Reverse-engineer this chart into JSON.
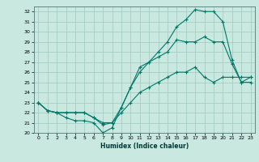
{
  "title": "",
  "xlabel": "Humidex (Indice chaleur)",
  "xlim": [
    -0.5,
    23.5
  ],
  "ylim": [
    20,
    32.5
  ],
  "yticks": [
    20,
    21,
    22,
    23,
    24,
    25,
    26,
    27,
    28,
    29,
    30,
    31,
    32
  ],
  "xticks": [
    0,
    1,
    2,
    3,
    4,
    5,
    6,
    7,
    8,
    9,
    10,
    11,
    12,
    13,
    14,
    15,
    16,
    17,
    18,
    19,
    20,
    21,
    22,
    23
  ],
  "bg_color": "#c8e8e0",
  "grid_color": "#a0c8c0",
  "line_color": "#007868",
  "line1_y": [
    23,
    22.2,
    22,
    22,
    22,
    22,
    21.5,
    20.8,
    21,
    22,
    23,
    24,
    24.5,
    25,
    25.5,
    26,
    26,
    26.5,
    25.5,
    25,
    25.5,
    25.5,
    25.5,
    25.5
  ],
  "line2_y": [
    23,
    22.2,
    22,
    21.5,
    21.2,
    21.2,
    21,
    20,
    20.5,
    22.5,
    24.5,
    26,
    27,
    27.5,
    28,
    29.2,
    29,
    29,
    29.5,
    29,
    29,
    26.8,
    25,
    25.5
  ],
  "line3_y": [
    23,
    22.2,
    22,
    22,
    22,
    22,
    21.5,
    21,
    21,
    22.5,
    24.5,
    26.5,
    27,
    28,
    29,
    30.5,
    31.2,
    32.2,
    32,
    32,
    31,
    27.2,
    25,
    25
  ]
}
